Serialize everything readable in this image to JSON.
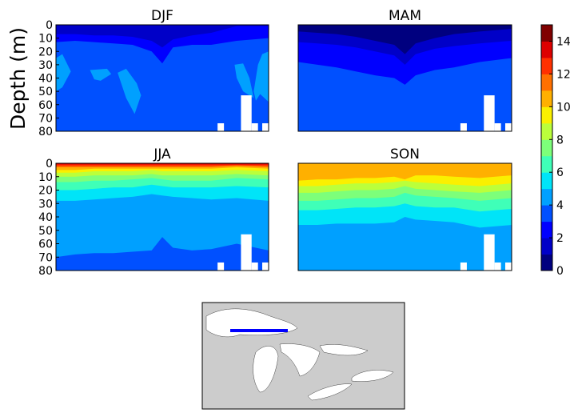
{
  "chart_data": {
    "type": "heatmap",
    "subtype": "filled-contour",
    "ylabel": "Depth (m)",
    "ylim": [
      80,
      0
    ],
    "yticks": [
      0,
      10,
      20,
      30,
      40,
      50,
      60,
      70,
      80
    ],
    "x_samples": [
      0,
      0.09,
      0.18,
      0.27,
      0.36,
      0.45,
      0.5,
      0.55,
      0.64,
      0.73,
      0.85,
      1.0
    ],
    "colorbar": {
      "levels": [
        0,
        1,
        2,
        3,
        4,
        5,
        6,
        7,
        8,
        9,
        10,
        11,
        12,
        13,
        14,
        15
      ],
      "ticks": [
        "0",
        "2",
        "4",
        "6",
        "8",
        "10",
        "12",
        "14"
      ],
      "colors": [
        "#00007f",
        "#0000c8",
        "#0000ff",
        "#0050ff",
        "#00a0ff",
        "#00e4f8",
        "#3fffb8",
        "#7dff7a",
        "#bbff3b",
        "#faf000",
        "#ffb000",
        "#ff7000",
        "#ff3000",
        "#dd0000",
        "#800000"
      ]
    },
    "nodata": [
      [
        0.76,
        0.79,
        74
      ],
      [
        0.87,
        0.92,
        53
      ],
      [
        0.92,
        0.95,
        74
      ],
      [
        0.97,
        1.0,
        74
      ]
    ],
    "panels": [
      {
        "title": "DJF",
        "base": 3,
        "layers": [
          {
            "level": 2,
            "bottom": [
              13,
              12,
              13,
              14,
              15,
              20,
              29,
              17,
              15,
              15,
              12,
              10
            ]
          },
          {
            "level": 1,
            "bottom": [
              7,
              7,
              8,
              8,
              9,
              12,
              17,
              11,
              8,
              6,
              1,
              1
            ]
          }
        ],
        "patches": [
          {
            "level": 4,
            "points": [
              [
                0,
                25
              ],
              [
                0.03,
                22
              ],
              [
                0.07,
                35
              ],
              [
                0.03,
                47
              ],
              [
                0,
                50
              ]
            ]
          },
          {
            "level": 4,
            "points": [
              [
                0.16,
                34
              ],
              [
                0.24,
                33
              ],
              [
                0.26,
                37
              ],
              [
                0.21,
                42
              ],
              [
                0.18,
                41
              ]
            ]
          },
          {
            "level": 4,
            "points": [
              [
                0.29,
                36
              ],
              [
                0.33,
                33
              ],
              [
                0.38,
                44
              ],
              [
                0.4,
                53
              ],
              [
                0.37,
                67
              ],
              [
                0.33,
                55
              ]
            ]
          },
          {
            "level": 4,
            "points": [
              [
                0.84,
                30
              ],
              [
                0.88,
                29
              ],
              [
                0.91,
                40
              ],
              [
                0.93,
                55
              ],
              [
                0.88,
                50
              ],
              [
                0.85,
                40
              ]
            ]
          },
          {
            "level": 4,
            "points": [
              [
                0.95,
                30
              ],
              [
                0.97,
                22
              ],
              [
                1.0,
                20
              ],
              [
                1.0,
                58
              ],
              [
                0.96,
                52
              ],
              [
                0.94,
                57
              ],
              [
                0.93,
                50
              ]
            ]
          }
        ]
      },
      {
        "title": "MAM",
        "base": 3,
        "layers": [
          {
            "level": 2,
            "bottom": [
              28,
              30,
              32,
              35,
              38,
              40,
              45,
              38,
              34,
              32,
              28,
              25
            ]
          },
          {
            "level": 1,
            "bottom": [
              13,
              14,
              15,
              17,
              20,
              23,
              30,
              22,
              18,
              16,
              14,
              12
            ]
          },
          {
            "level": 0,
            "bottom": [
              5,
              6,
              7,
              9,
              12,
              15,
              22,
              14,
              10,
              7,
              5,
              3
            ]
          }
        ],
        "patches": []
      },
      {
        "title": "JJA",
        "base": 3,
        "layers": [
          {
            "level": 4,
            "bottom": [
              70,
              68,
              67,
              67,
              66,
              65,
              55,
              63,
              65,
              64,
              60,
              65
            ]
          },
          {
            "level": 5,
            "bottom": [
              28,
              28,
              27,
              26,
              25,
              23,
              24,
              25,
              26,
              27,
              26,
              28
            ]
          },
          {
            "level": 6,
            "bottom": [
              20,
              20,
              19,
              18,
              18,
              16,
              17,
              18,
              18,
              18,
              17,
              18
            ]
          },
          {
            "level": 7,
            "bottom": [
              14,
              14,
              13,
              13,
              12,
              11,
              12,
              13,
              13,
              13,
              11,
              12
            ]
          },
          {
            "level": 8,
            "bottom": [
              10,
              10,
              9,
              9,
              9,
              8,
              9,
              9,
              9,
              9,
              8,
              9
            ]
          },
          {
            "level": 9,
            "bottom": [
              7,
              7,
              6,
              6,
              6,
              5,
              6,
              6,
              6,
              6,
              5,
              6
            ]
          },
          {
            "level": 10,
            "bottom": [
              5,
              5,
              4,
              4,
              4,
              4,
              4,
              4,
              4,
              4,
              3,
              4
            ]
          },
          {
            "level": 11,
            "bottom": [
              3,
              3,
              3,
              3,
              3,
              3,
              3,
              3,
              3,
              3,
              2,
              3
            ]
          },
          {
            "level": 12,
            "bottom": [
              2,
              2,
              2,
              2,
              2,
              2,
              2,
              2,
              2,
              2,
              1.5,
              2
            ]
          },
          {
            "level": 13,
            "bottom": [
              1,
              1,
              1,
              1,
              1,
              1,
              1,
              1,
              1,
              1,
              1,
              1
            ]
          }
        ],
        "patches": []
      },
      {
        "title": "SON",
        "base": 4,
        "layers": [
          {
            "level": 5,
            "bottom": [
              46,
              46,
              45,
              45,
              45,
              44,
              40,
              42,
              43,
              44,
              48,
              46
            ]
          },
          {
            "level": 6,
            "bottom": [
              35,
              35,
              34,
              33,
              33,
              32,
              30,
              32,
              33,
              33,
              36,
              34
            ]
          },
          {
            "level": 7,
            "bottom": [
              28,
              28,
              27,
              26,
              26,
              25,
              22,
              24,
              25,
              26,
              28,
              26
            ]
          },
          {
            "level": 8,
            "bottom": [
              22,
              22,
              21,
              20,
              20,
              19,
              17,
              19,
              20,
              21,
              22,
              20
            ]
          },
          {
            "level": 9,
            "bottom": [
              17,
              17,
              16,
              15,
              15,
              14,
              13,
              14,
              15,
              16,
              17,
              15
            ]
          },
          {
            "level": 10,
            "bottom": [
              13,
              12,
              12,
              11,
              11,
              10,
              12,
              9,
              9,
              10,
              11,
              9
            ]
          }
        ],
        "patches": []
      }
    ],
    "inset_map": {
      "transect_color": "#0000ff",
      "land_color": "#cccccc",
      "water_color": "#ffffff"
    }
  }
}
